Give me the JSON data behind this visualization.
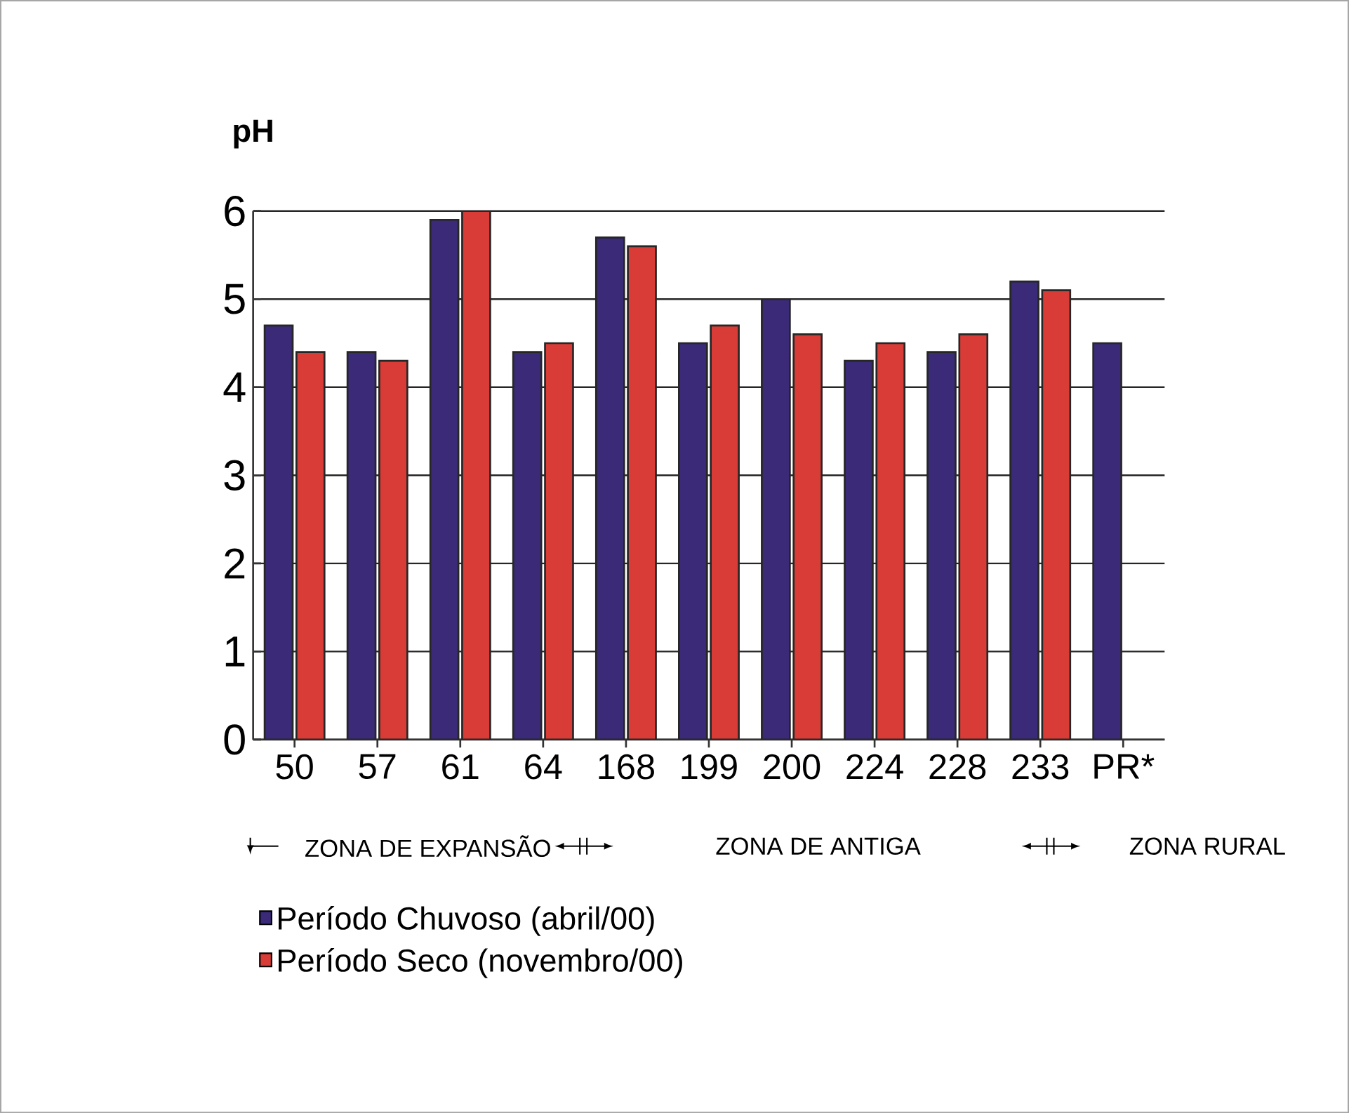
{
  "chart_data": {
    "type": "bar",
    "ylabel": "pH",
    "categories": [
      "50",
      "57",
      "61",
      "64",
      "168",
      "199",
      "200",
      "224",
      "228",
      "233",
      "PR*"
    ],
    "series": [
      {
        "name": "Período Chuvoso (abril/00)",
        "color": "#3a2a78",
        "values": [
          4.7,
          4.4,
          5.9,
          4.4,
          5.7,
          4.5,
          5.0,
          4.3,
          4.4,
          5.2,
          4.5
        ]
      },
      {
        "name": "Período Seco (novembro/00)",
        "color": "#d93c36",
        "values": [
          4.4,
          4.3,
          6.0,
          4.5,
          5.6,
          4.7,
          4.6,
          4.5,
          4.6,
          5.1,
          null
        ]
      }
    ],
    "ylim": [
      0,
      6
    ],
    "yticks": [
      0,
      1,
      2,
      3,
      4,
      5,
      6
    ],
    "grid": "y",
    "legend": "bottom left",
    "annotations": [
      "ZONA DE EXPANSÃO",
      "ZONA DE ANTIGA",
      "ZONA RURAL"
    ]
  }
}
